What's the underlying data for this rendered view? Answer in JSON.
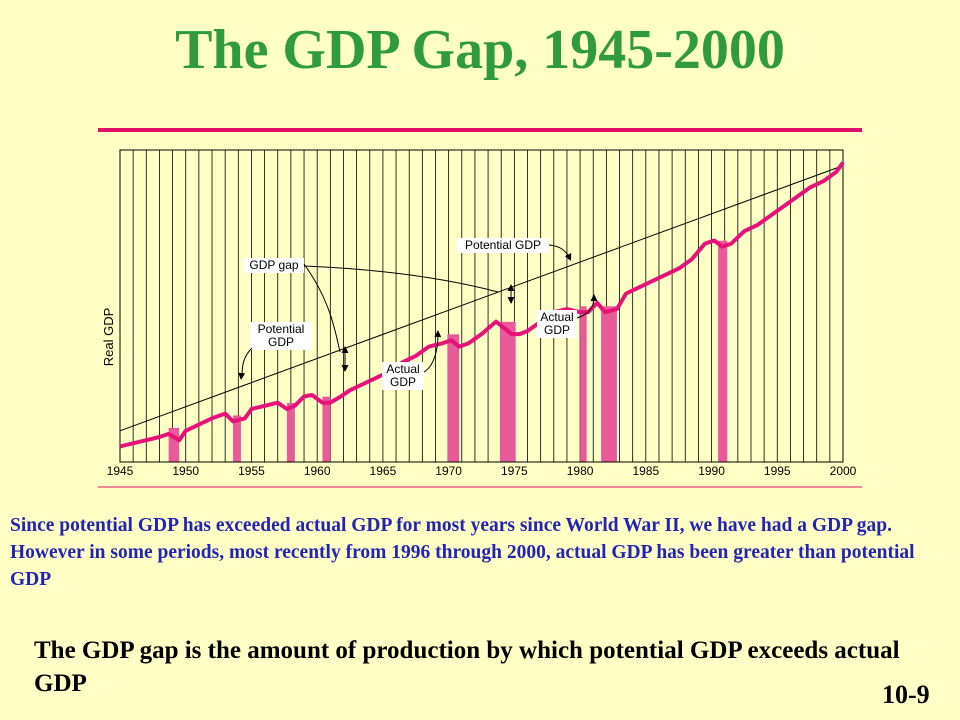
{
  "slide": {
    "title": "The GDP Gap, 1945-2000",
    "caption": "Since potential GDP has exceeded actual GDP for most years since World War II, we have had a GDP gap.  However in some periods, most recently from 1996 through 2000, actual GDP has been greater than potential GDP",
    "definition": "The GDP gap is the amount of production by which potential GDP exceeds actual GDP",
    "slide_number": "10-9"
  },
  "colors": {
    "background": "#ffffc6",
    "title": "#2f9a3e",
    "accent_rule": "#e0106a",
    "actual_gdp_line": "#e6127a",
    "recession_bar": "#e85a9a",
    "caption_text": "#2424b4"
  },
  "chart_data": {
    "type": "line",
    "title": "",
    "xlabel": "",
    "ylabel": "Real GDP",
    "xlim": [
      1945,
      2000
    ],
    "ylim": [
      0,
      100
    ],
    "xticks": [
      1945,
      1950,
      1955,
      1960,
      1965,
      1970,
      1975,
      1980,
      1985,
      1990,
      1995,
      2000
    ],
    "grid": "vertical lines every year",
    "series": [
      {
        "name": "Potential GDP",
        "style": "thin black line",
        "x": [
          1945,
          2000
        ],
        "y": [
          10,
          95
        ]
      },
      {
        "name": "Actual GDP",
        "style": "thick pink line",
        "x": [
          1945,
          1946,
          1947,
          1948,
          1948.7,
          1949.5,
          1950,
          1951,
          1952,
          1953,
          1953.6,
          1954.5,
          1955,
          1956,
          1957,
          1957.7,
          1958.3,
          1959,
          1959.6,
          1960.4,
          1961,
          1961.8,
          1962.5,
          1963.5,
          1964.5,
          1965.5,
          1966.5,
          1967.5,
          1968.5,
          1969.5,
          1970.2,
          1970.8,
          1971.5,
          1972.5,
          1973.6,
          1974.2,
          1974.8,
          1975.4,
          1976,
          1977,
          1978,
          1979,
          1980,
          1980.6,
          1981.3,
          1981.9,
          1982.8,
          1983.5,
          1984.5,
          1985.5,
          1986.5,
          1987.5,
          1988.5,
          1989.5,
          1990.2,
          1990.8,
          1991.5,
          1992.5,
          1993.5,
          1994.5,
          1995.5,
          1996.5,
          1997.5,
          1998.5,
          1999.5,
          2000
        ],
        "y": [
          5,
          6,
          7,
          8,
          9,
          7,
          10,
          12,
          14,
          15.5,
          13,
          14,
          17,
          18,
          19,
          17,
          18,
          21,
          21.5,
          19,
          19,
          21,
          23,
          25,
          27,
          29,
          32,
          34,
          37,
          38,
          39,
          37,
          38,
          41,
          45,
          43,
          41,
          41,
          42,
          45,
          48,
          49,
          48,
          48,
          51,
          48,
          49,
          54,
          56,
          58,
          60,
          62,
          65,
          70,
          71,
          69,
          70,
          74,
          76,
          79,
          82,
          85,
          88,
          90,
          93,
          96
        ]
      }
    ],
    "recession_periods": [
      [
        1948.7,
        1949.5
      ],
      [
        1953.6,
        1954.2
      ],
      [
        1957.7,
        1958.3
      ],
      [
        1960.4,
        1961.0
      ],
      [
        1969.9,
        1970.8
      ],
      [
        1973.9,
        1975.1
      ],
      [
        1980.0,
        1980.5
      ],
      [
        1981.6,
        1982.8
      ],
      [
        1990.5,
        1991.2
      ]
    ],
    "annotations": [
      {
        "id": "gap-top",
        "lines": [
          "GDP gap"
        ]
      },
      {
        "id": "potential-gdp-top",
        "lines": [
          "Potential GDP"
        ]
      },
      {
        "id": "potential-gdp-left",
        "lines": [
          "Potential",
          "GDP"
        ]
      },
      {
        "id": "actual-gdp-mid",
        "lines": [
          "Actual",
          "GDP"
        ]
      },
      {
        "id": "actual-gdp-right",
        "lines": [
          "Actual",
          "GDP"
        ]
      }
    ]
  }
}
